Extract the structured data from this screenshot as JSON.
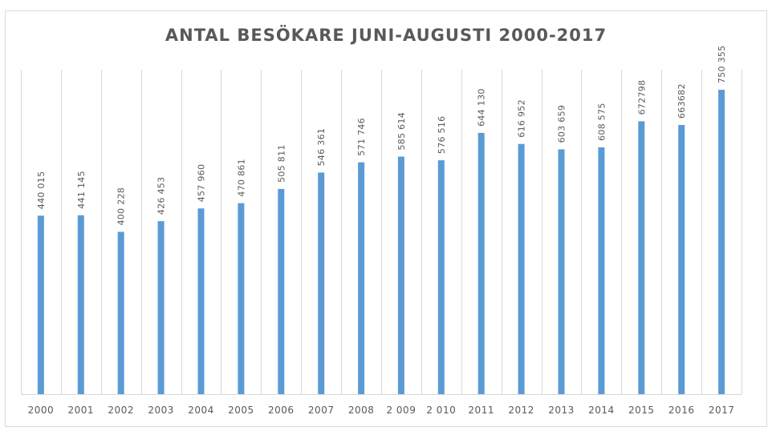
{
  "colors": {
    "bar": "#5b9bd5",
    "gridline": "#d9d9d9",
    "text": "#595959"
  },
  "chart_data": {
    "type": "bar",
    "title": "ANTAL BESÖKARE JUNI-AUGUSTI 2000-2017",
    "xlabel": "",
    "ylabel": "",
    "grid": "vertical category separators",
    "legend": "none",
    "ylim": [
      0,
      800000
    ],
    "categories": [
      "2000",
      "2001",
      "2002",
      "2003",
      "2004",
      "2005",
      "2006",
      "2007",
      "2008",
      "2 009",
      "2 010",
      "2011",
      "2012",
      "2013",
      "2014",
      "2015",
      "2016",
      "2017"
    ],
    "values": [
      440015,
      441145,
      400228,
      426453,
      457960,
      470861,
      505811,
      546361,
      571746,
      585614,
      576516,
      644130,
      616952,
      603659,
      608575,
      672798,
      663682,
      750355
    ],
    "data_labels": [
      "440 015",
      "441 145",
      "400 228",
      "426 453",
      "457 960",
      "470 861",
      "505 811",
      "546 361",
      "571 746",
      "585 614",
      "576 516",
      "644 130",
      "616 952",
      "603 659",
      "608 575",
      "672798",
      "663682",
      "750 355"
    ]
  }
}
